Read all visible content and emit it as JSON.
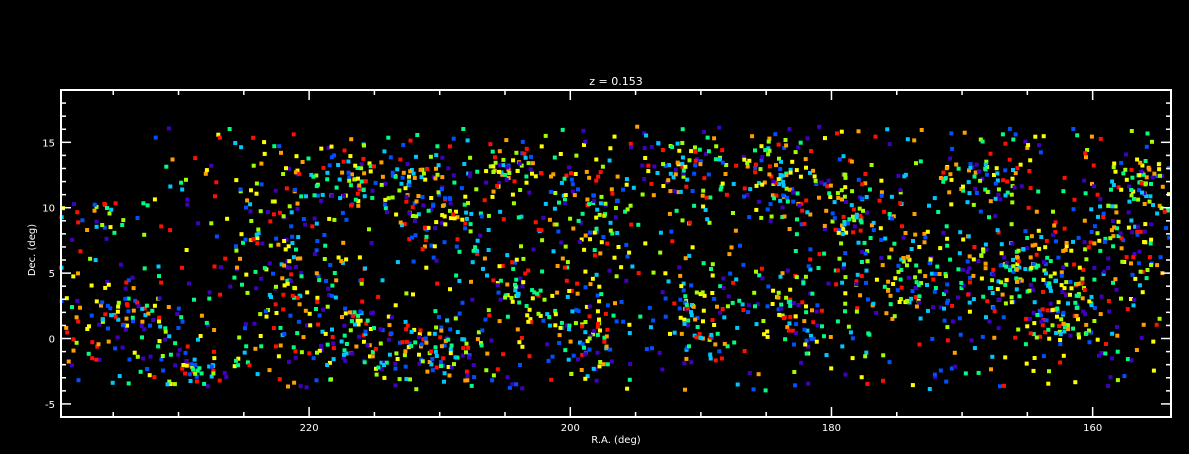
{
  "chart_data": {
    "type": "scatter",
    "title": "z = 0.153",
    "xlabel": "R.A. (deg)",
    "ylabel": "Dec. (deg)",
    "xlim": [
      239,
      154
    ],
    "ylim": [
      -6,
      19
    ],
    "x_reversed": true,
    "xticks": [
      220,
      200,
      180,
      160
    ],
    "yticks": [
      -5,
      0,
      5,
      10,
      15
    ],
    "grid": false,
    "background": "#000000",
    "axis_color": "#ffffff",
    "marker": "square",
    "color_scale": [
      "#4000c0",
      "#0050ff",
      "#00c8ff",
      "#00ff80",
      "#a0ff00",
      "#ffff00",
      "#ffa000",
      "#ff1000"
    ],
    "structures": [
      {
        "x": 234,
        "y": 2,
        "dx": 4,
        "dy": 3,
        "n": 70
      },
      {
        "x": 229,
        "y": -2,
        "dx": 3,
        "dy": 1.2,
        "n": 40
      },
      {
        "x": 236,
        "y": 9.5,
        "dx": 2,
        "dy": 1.5,
        "n": 20
      },
      {
        "x": 222,
        "y": 6,
        "dx": 4,
        "dy": 5,
        "n": 110
      },
      {
        "x": 216,
        "y": 12,
        "dx": 5,
        "dy": 2,
        "n": 90
      },
      {
        "x": 216,
        "y": 0,
        "dx": 4,
        "dy": 2.5,
        "n": 80
      },
      {
        "x": 210,
        "y": 10,
        "dx": 4,
        "dy": 3,
        "n": 90
      },
      {
        "x": 210,
        "y": -1,
        "dx": 3,
        "dy": 2,
        "n": 70
      },
      {
        "x": 204,
        "y": 13,
        "dx": 3,
        "dy": 1.5,
        "n": 50
      },
      {
        "x": 204,
        "y": 4,
        "dx": 3,
        "dy": 4,
        "n": 70
      },
      {
        "x": 198,
        "y": 10,
        "dx": 3,
        "dy": 4,
        "n": 80
      },
      {
        "x": 199,
        "y": 0,
        "dx": 3,
        "dy": 2.5,
        "n": 60
      },
      {
        "x": 191,
        "y": 13,
        "dx": 3,
        "dy": 2,
        "n": 60
      },
      {
        "x": 190,
        "y": 2,
        "dx": 3,
        "dy": 3,
        "n": 60
      },
      {
        "x": 184,
        "y": 12,
        "dx": 3,
        "dy": 3,
        "n": 90
      },
      {
        "x": 182,
        "y": 2,
        "dx": 3,
        "dy": 3,
        "n": 70
      },
      {
        "x": 178,
        "y": 10,
        "dx": 3,
        "dy": 2.5,
        "n": 80
      },
      {
        "x": 174,
        "y": 5,
        "dx": 4,
        "dy": 3,
        "n": 100
      },
      {
        "x": 169,
        "y": 12,
        "dx": 3,
        "dy": 2,
        "n": 60
      },
      {
        "x": 166,
        "y": 5,
        "dx": 4,
        "dy": 3,
        "n": 120
      },
      {
        "x": 162,
        "y": 2,
        "dx": 3,
        "dy": 2,
        "n": 80
      },
      {
        "x": 158,
        "y": 8,
        "dx": 3,
        "dy": 4,
        "n": 100
      },
      {
        "x": 156,
        "y": 12,
        "dx": 2,
        "dy": 2,
        "n": 40
      }
    ],
    "background_points": 900
  }
}
